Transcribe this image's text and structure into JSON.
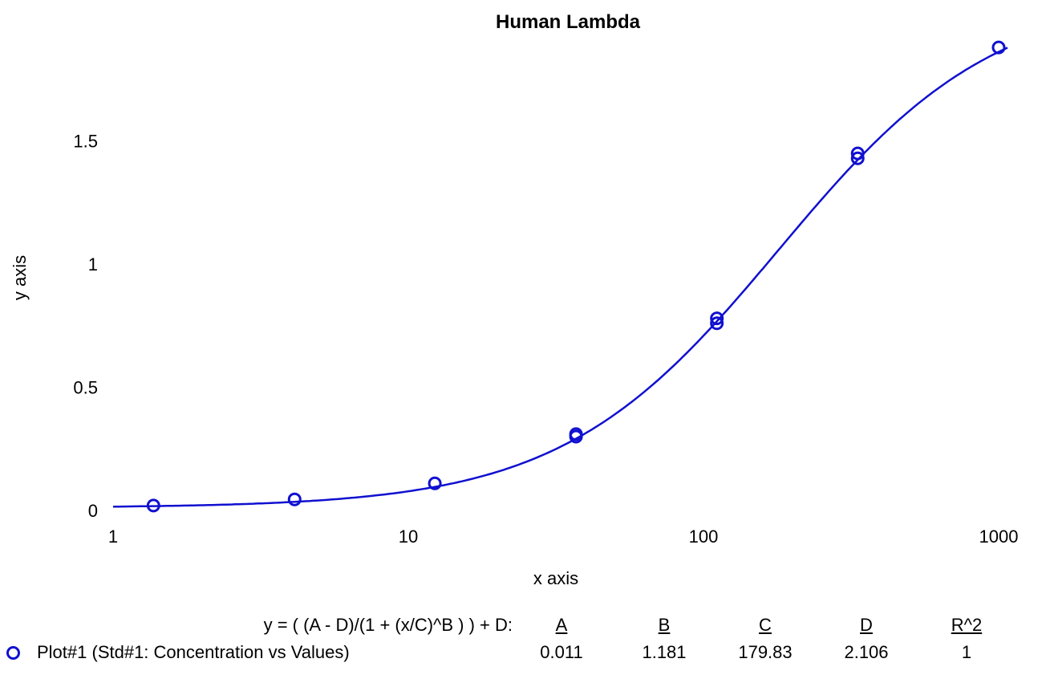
{
  "chart_data": {
    "type": "scatter",
    "title": "Human Lambda",
    "xlabel": "x axis",
    "ylabel": "y axis",
    "xscale": "log",
    "xlim": [
      1,
      1000
    ],
    "ylim": [
      0,
      1.9
    ],
    "xticks": [
      {
        "value": 1,
        "label": "1"
      },
      {
        "value": 10,
        "label": "10"
      },
      {
        "value": 100,
        "label": "100"
      },
      {
        "value": 1000,
        "label": "1000"
      }
    ],
    "yticks": [
      {
        "value": 0,
        "label": "0"
      },
      {
        "value": 0.5,
        "label": "0.5"
      },
      {
        "value": 1,
        "label": "1"
      },
      {
        "value": 1.5,
        "label": "1.5"
      }
    ],
    "grid": false,
    "series": [
      {
        "name": "Plot#1 (Std#1: Concentration vs Values)",
        "color": "#1010d0",
        "points": [
          {
            "x": 1.37,
            "y": 0.02
          },
          {
            "x": 4.12,
            "y": 0.045
          },
          {
            "x": 12.3,
            "y": 0.11
          },
          {
            "x": 37,
            "y": 0.31
          },
          {
            "x": 37,
            "y": 0.3
          },
          {
            "x": 111,
            "y": 0.78
          },
          {
            "x": 111,
            "y": 0.76
          },
          {
            "x": 333,
            "y": 1.45
          },
          {
            "x": 333,
            "y": 1.43
          },
          {
            "x": 1000,
            "y": 1.88
          }
        ]
      }
    ],
    "fit": {
      "equation": "y = ( (A - D)/(1 + (x/C)^B ) ) + D:",
      "params": [
        {
          "name": "A",
          "value": "0.011",
          "num": 0.011
        },
        {
          "name": "B",
          "value": "1.181",
          "num": 1.181
        },
        {
          "name": "C",
          "value": "179.83",
          "num": 179.83
        },
        {
          "name": "D",
          "value": "2.106",
          "num": 2.106
        },
        {
          "name": "R^2",
          "value": "1"
        }
      ],
      "line_color": "#1010d0"
    }
  }
}
